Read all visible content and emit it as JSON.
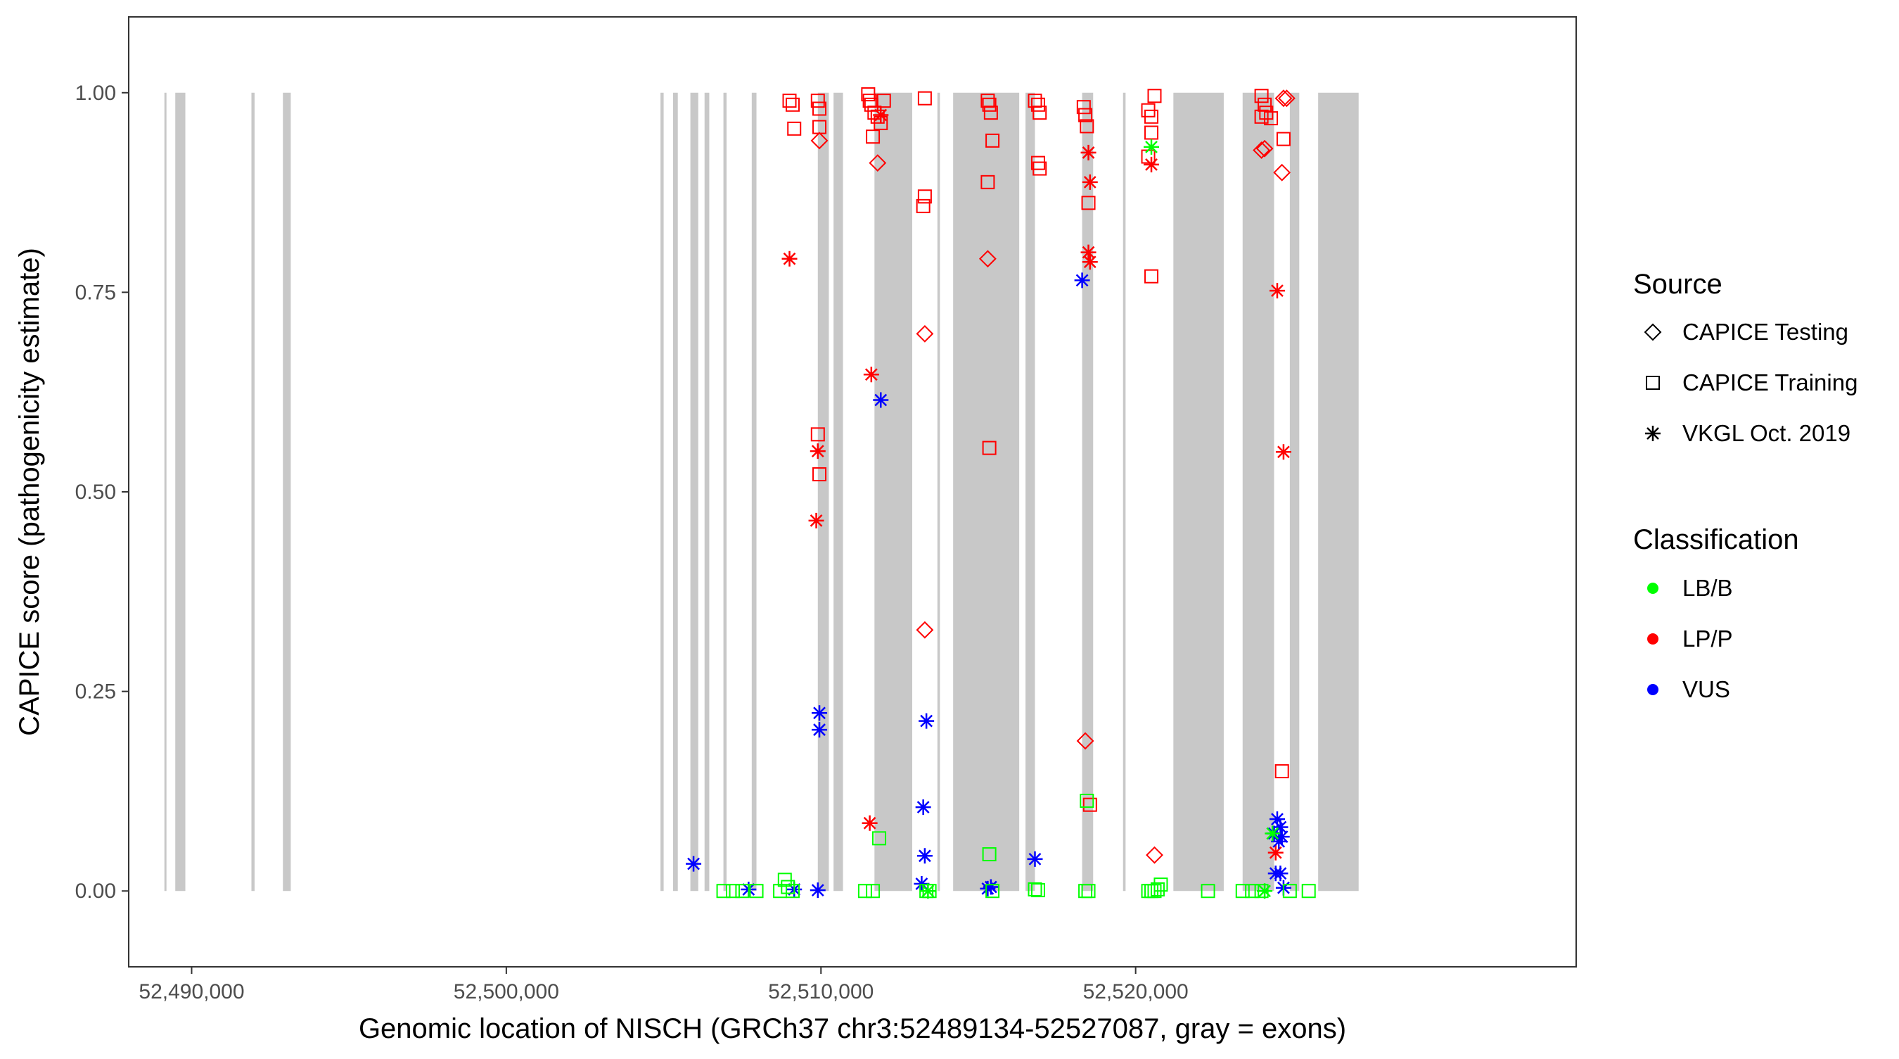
{
  "chart_data": {
    "type": "scatter",
    "title": "",
    "xlabel": "Genomic location of NISCH (GRCh37 chr3:52489134-52527087, gray = exons)",
    "ylabel": "CAPICE score (pathogenicity estimate)",
    "xlim": [
      52488000,
      52534000
    ],
    "ylim": [
      -0.095,
      1.095
    ],
    "x_ticks": [
      52490000,
      52500000,
      52510000,
      52520000
    ],
    "x_tick_labels": [
      "52,490,000",
      "52,500,000",
      "52,510,000",
      "52,520,000"
    ],
    "y_ticks": [
      0,
      0.25,
      0.5,
      0.75,
      1.0
    ],
    "y_tick_labels": [
      "0.00",
      "0.25",
      "0.50",
      "0.75",
      "1.00"
    ],
    "grid": false,
    "exons": [
      [
        52489134,
        52489200
      ],
      [
        52489480,
        52489800
      ],
      [
        52491900,
        52492000
      ],
      [
        52492900,
        52493150
      ],
      [
        52504900,
        52505000
      ],
      [
        52505300,
        52505450
      ],
      [
        52505850,
        52506100
      ],
      [
        52506300,
        52506450
      ],
      [
        52506900,
        52507000
      ],
      [
        52507800,
        52507950
      ],
      [
        52509900,
        52510250
      ],
      [
        52510400,
        52510700
      ],
      [
        52511700,
        52512900
      ],
      [
        52513700,
        52513780
      ],
      [
        52514200,
        52516300
      ],
      [
        52516500,
        52516800
      ],
      [
        52518300,
        52518650
      ],
      [
        52519600,
        52519680
      ],
      [
        52521200,
        52522800
      ],
      [
        52523400,
        52524400
      ],
      [
        52524900,
        52525200
      ],
      [
        52525800,
        52527087
      ]
    ],
    "legend": {
      "position": "right",
      "source_title": "Source",
      "source_entries": [
        {
          "label": "CAPICE Testing",
          "shape": "diamond"
        },
        {
          "label": "CAPICE Training",
          "shape": "square"
        },
        {
          "label": "VKGL Oct. 2019",
          "shape": "star"
        }
      ],
      "class_title": "Classification",
      "class_entries": [
        {
          "label": "LB/B",
          "color": "#00ff00"
        },
        {
          "label": "LP/P",
          "color": "#ff0000"
        },
        {
          "label": "VUS",
          "color": "#0000ff"
        }
      ]
    },
    "shapes": {
      "CAPICE Testing": "diamond",
      "CAPICE Training": "square",
      "VKGL Oct. 2019": "star"
    },
    "colors": {
      "LB/B": "#00ff00",
      "LP/P": "#ff0000",
      "VUS": "#0000ff"
    },
    "series": [
      {
        "source": "CAPICE Testing",
        "class": "LP/P",
        "points": [
          [
            52509950,
            0.94
          ],
          [
            52511800,
            0.912
          ],
          [
            52513300,
            0.698
          ],
          [
            52513300,
            0.327
          ],
          [
            52515300,
            0.792
          ],
          [
            52518400,
            0.188
          ],
          [
            52520600,
            0.045
          ],
          [
            52524000,
            0.928
          ],
          [
            52524100,
            0.93
          ],
          [
            52524700,
            0.993
          ],
          [
            52524800,
            0.993
          ],
          [
            52524650,
            0.9
          ]
        ]
      },
      {
        "source": "CAPICE Training",
        "class": "LP/P",
        "points": [
          [
            52509000,
            0.99
          ],
          [
            52509100,
            0.985
          ],
          [
            52509150,
            0.955
          ],
          [
            52509900,
            0.99
          ],
          [
            52509950,
            0.98
          ],
          [
            52509950,
            0.957
          ],
          [
            52509900,
            0.572
          ],
          [
            52509950,
            0.522
          ],
          [
            52511500,
            0.998
          ],
          [
            52511550,
            0.99
          ],
          [
            52511600,
            0.985
          ],
          [
            52511700,
            0.975
          ],
          [
            52511800,
            0.97
          ],
          [
            52511900,
            0.962
          ],
          [
            52512000,
            0.99
          ],
          [
            52511650,
            0.945
          ],
          [
            52513300,
            0.993
          ],
          [
            52513300,
            0.87
          ],
          [
            52513250,
            0.858
          ],
          [
            52515300,
            0.99
          ],
          [
            52515350,
            0.985
          ],
          [
            52515400,
            0.975
          ],
          [
            52515450,
            0.94
          ],
          [
            52515300,
            0.888
          ],
          [
            52515350,
            0.555
          ],
          [
            52516800,
            0.99
          ],
          [
            52516900,
            0.985
          ],
          [
            52516950,
            0.975
          ],
          [
            52516900,
            0.912
          ],
          [
            52516950,
            0.905
          ],
          [
            52518350,
            0.982
          ],
          [
            52518400,
            0.972
          ],
          [
            52518450,
            0.958
          ],
          [
            52518500,
            0.862
          ],
          [
            52518550,
            0.108
          ],
          [
            52520400,
            0.978
          ],
          [
            52520500,
            0.97
          ],
          [
            52520600,
            0.996
          ],
          [
            52520500,
            0.95
          ],
          [
            52520400,
            0.92
          ],
          [
            52520500,
            0.77
          ],
          [
            52524000,
            0.996
          ],
          [
            52524100,
            0.985
          ],
          [
            52524150,
            0.975
          ],
          [
            52524000,
            0.97
          ],
          [
            52524300,
            0.968
          ],
          [
            52524700,
            0.942
          ],
          [
            52524650,
            0.15
          ]
        ]
      },
      {
        "source": "VKGL Oct. 2019",
        "class": "LP/P",
        "points": [
          [
            52509000,
            0.792
          ],
          [
            52509900,
            0.551
          ],
          [
            52509850,
            0.464
          ],
          [
            52511600,
            0.647
          ],
          [
            52511550,
            0.085
          ],
          [
            52511900,
            0.972
          ],
          [
            52518500,
            0.925
          ],
          [
            52518550,
            0.888
          ],
          [
            52518500,
            0.8
          ],
          [
            52518550,
            0.788
          ],
          [
            52520500,
            0.91
          ],
          [
            52524500,
            0.752
          ],
          [
            52524700,
            0.55
          ],
          [
            52524450,
            0.048
          ]
        ]
      },
      {
        "source": "VKGL Oct. 2019",
        "class": "VUS",
        "points": [
          [
            52505950,
            0.034
          ],
          [
            52507700,
            0.002
          ],
          [
            52509150,
            0.002
          ],
          [
            52509900,
            0.001
          ],
          [
            52509950,
            0.223
          ],
          [
            52509950,
            0.202
          ],
          [
            52511900,
            0.615
          ],
          [
            52513350,
            0.213
          ],
          [
            52513250,
            0.105
          ],
          [
            52513300,
            0.044
          ],
          [
            52513200,
            0.009
          ],
          [
            52515300,
            0.003
          ],
          [
            52515400,
            0.005
          ],
          [
            52516800,
            0.04
          ],
          [
            52518300,
            0.765
          ],
          [
            52524500,
            0.09
          ],
          [
            52524600,
            0.08
          ],
          [
            52524400,
            0.072
          ],
          [
            52524650,
            0.068
          ],
          [
            52524550,
            0.062
          ],
          [
            52524450,
            0.022
          ],
          [
            52524600,
            0.022
          ],
          [
            52524700,
            0.004
          ]
        ]
      },
      {
        "source": "VKGL Oct. 2019",
        "class": "LB/B",
        "points": [
          [
            52520500,
            0.932
          ],
          [
            52524350,
            0.072
          ],
          [
            52513400,
            0.0
          ],
          [
            52524100,
            0.0
          ]
        ]
      },
      {
        "source": "CAPICE Training",
        "class": "LB/B",
        "points": [
          [
            52506900,
            0.0
          ],
          [
            52507200,
            0.0
          ],
          [
            52507500,
            0.0
          ],
          [
            52507950,
            0.0
          ],
          [
            52508700,
            0.0
          ],
          [
            52508850,
            0.014
          ],
          [
            52508950,
            0.005
          ],
          [
            52509100,
            0.0
          ],
          [
            52511400,
            0.0
          ],
          [
            52511650,
            0.0
          ],
          [
            52511850,
            0.066
          ],
          [
            52513350,
            0.0
          ],
          [
            52513450,
            0.0
          ],
          [
            52515350,
            0.046
          ],
          [
            52515450,
            0.0
          ],
          [
            52516800,
            0.002
          ],
          [
            52516900,
            0.001
          ],
          [
            52518400,
            0.0
          ],
          [
            52518500,
            0.0
          ],
          [
            52518450,
            0.113
          ],
          [
            52520400,
            0.0
          ],
          [
            52520500,
            0.0
          ],
          [
            52520600,
            0.0
          ],
          [
            52520700,
            0.002
          ],
          [
            52520800,
            0.008
          ],
          [
            52522300,
            0.0
          ],
          [
            52523400,
            0.0
          ],
          [
            52523700,
            0.0
          ],
          [
            52524000,
            0.0
          ],
          [
            52524900,
            0.0
          ],
          [
            52525500,
            0.0
          ]
        ]
      }
    ]
  }
}
